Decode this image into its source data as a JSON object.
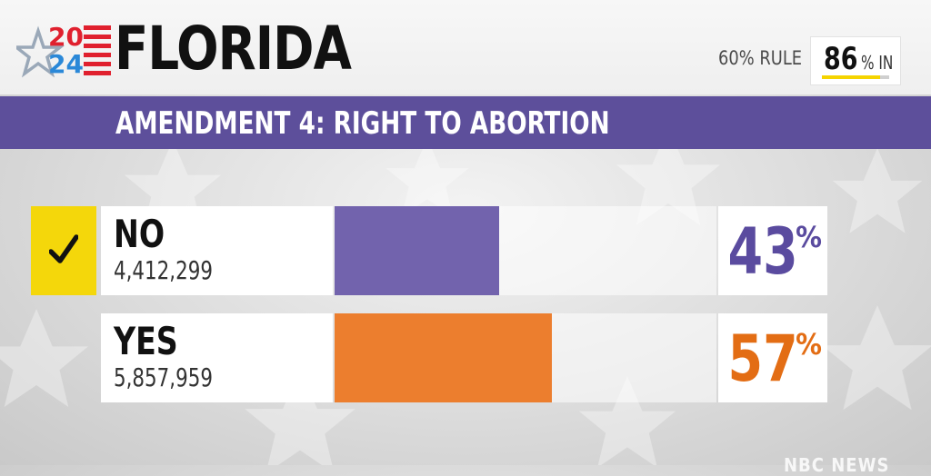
{
  "header": {
    "logo_year_top": "20",
    "logo_year_bottom": "24",
    "state": "FLORIDA",
    "rule": "60% RULE",
    "reporting_value": "86",
    "reporting_suffix": "% IN",
    "reporting_fraction": 0.86
  },
  "race": {
    "title": "AMENDMENT 4: RIGHT TO ABORTION"
  },
  "results": [
    {
      "name": "NO",
      "votes": "4,412,299",
      "pct": "43",
      "pct_sign": "%",
      "share": 0.43,
      "color": "#7263ad",
      "text_color": "#5a4b9f",
      "winner_check": true
    },
    {
      "name": "YES",
      "votes": "5,857,959",
      "pct": "57",
      "pct_sign": "%",
      "share": 0.57,
      "color": "#ec7e2e",
      "text_color": "#e36d14",
      "winner_check": false
    }
  ],
  "colors": {
    "banner": "#5d4f9b",
    "check": "#f4d70b",
    "logo_red": "#e0202e",
    "logo_blue": "#2a88d8"
  },
  "icons": [
    "star-icon",
    "flag-stripes-icon",
    "checkmark-icon"
  ],
  "network": "NBC NEWS"
}
